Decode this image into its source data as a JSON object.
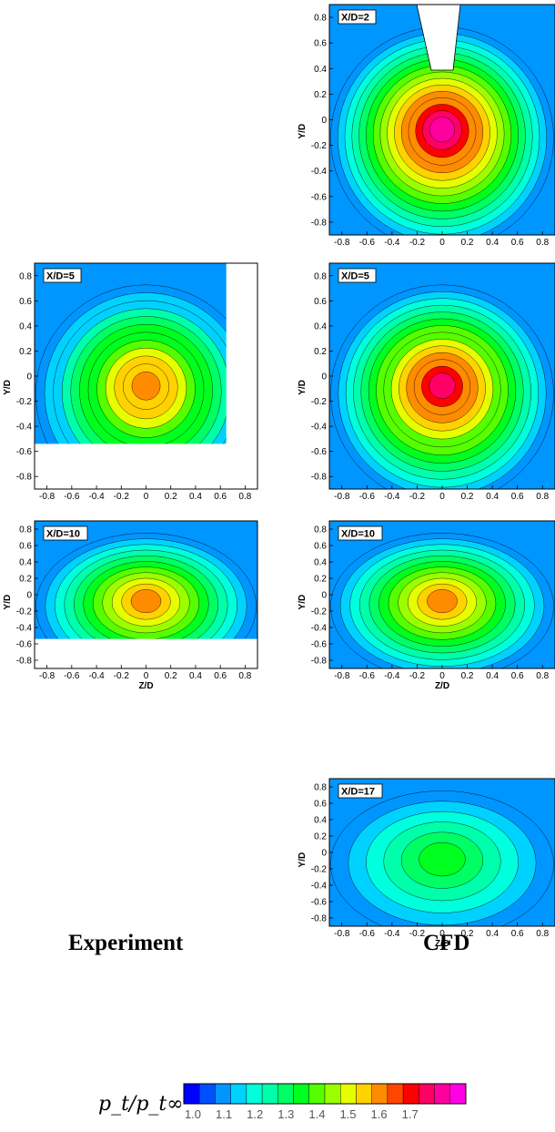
{
  "chart_data": {
    "type": "heatmap",
    "panels": [
      {
        "id": "cfd-x2",
        "column": "CFD",
        "station_label": "X/D=2",
        "station": 2,
        "colorbar_level_peak": 1.8,
        "ylabel": "Y/D",
        "xlabel": ""
      },
      {
        "id": "exp-x5",
        "column": "Experiment",
        "station_label": "X/D=5",
        "station": 5,
        "colorbar_level_peak": 1.65,
        "ylabel": "Y/D",
        "xlabel": ""
      },
      {
        "id": "cfd-x5",
        "column": "CFD",
        "station_label": "X/D=5",
        "station": 5,
        "colorbar_level_peak": 1.75,
        "ylabel": "Y/D",
        "xlabel": ""
      },
      {
        "id": "exp-x10",
        "column": "Experiment",
        "station_label": "X/D=10",
        "station": 10,
        "colorbar_level_peak": 1.6,
        "ylabel": "Y/D",
        "xlabel": "Z/D"
      },
      {
        "id": "cfd-x10",
        "column": "CFD",
        "station_label": "X/D=10",
        "station": 10,
        "colorbar_level_peak": 1.6,
        "ylabel": "Y/D",
        "xlabel": "Z/D"
      },
      {
        "id": "cfd-x17",
        "column": "CFD",
        "station_label": "X/D=17",
        "station": 17,
        "colorbar_level_peak": 1.35,
        "ylabel": "Y/D",
        "xlabel": "Z/D"
      }
    ],
    "axis_ticks": [
      "-0.8",
      "-0.6",
      "-0.4",
      "-0.2",
      "0",
      "0.2",
      "0.4",
      "0.6",
      "0.8"
    ],
    "xlim": [
      -0.9,
      0.9
    ],
    "ylim": [
      -0.9,
      0.9
    ],
    "column_labels": [
      "Experiment",
      "CFD"
    ],
    "colorbar": {
      "title": "p_t/p_t∞",
      "tick_labels": [
        "1.0",
        "1.1",
        "1.2",
        "1.3",
        "1.4",
        "1.5",
        "1.6",
        "1.7"
      ],
      "range": [
        1.0,
        1.8
      ],
      "levels": 16,
      "colors": [
        "#0000ff",
        "#0050ff",
        "#0096ff",
        "#00d2ff",
        "#00ffdc",
        "#00ffaa",
        "#00ff64",
        "#00ff1e",
        "#55ff00",
        "#9bff00",
        "#e6ff00",
        "#ffd200",
        "#ff8c00",
        "#ff4600",
        "#ff0000",
        "#ff0064",
        "#ff00a0",
        "#ff00e6"
      ]
    }
  }
}
